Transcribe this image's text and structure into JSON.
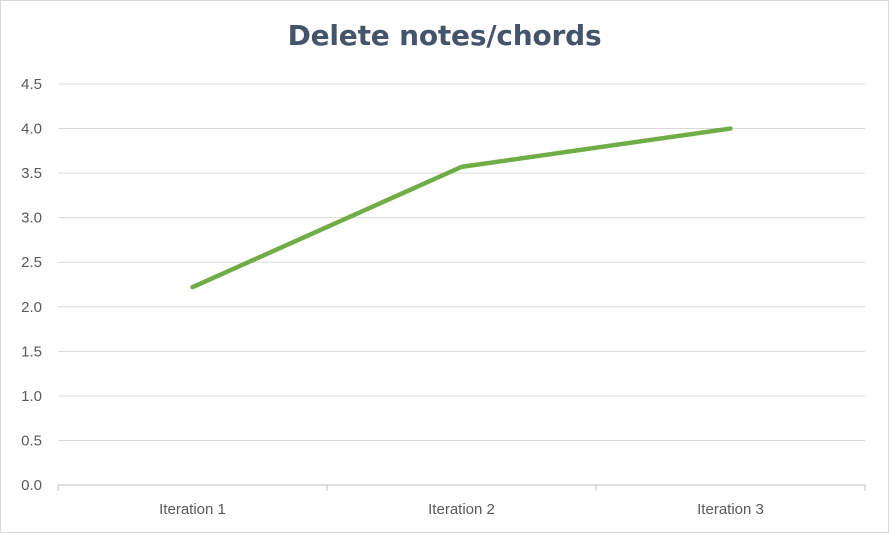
{
  "chart_data": {
    "type": "line",
    "title": "Delete notes/chords",
    "xlabel": "",
    "ylabel": "",
    "categories": [
      "Iteration 1",
      "Iteration 2",
      "Iteration 3"
    ],
    "series": [
      {
        "values": [
          2.22,
          3.57,
          4.0
        ],
        "color": "#70ad47"
      }
    ],
    "ylim": [
      0,
      4.5
    ],
    "yticks": [
      "0.0",
      "0.5",
      "1.0",
      "1.5",
      "2.0",
      "2.5",
      "3.0",
      "3.5",
      "4.0",
      "4.5"
    ],
    "grid": true,
    "legend": "none"
  }
}
